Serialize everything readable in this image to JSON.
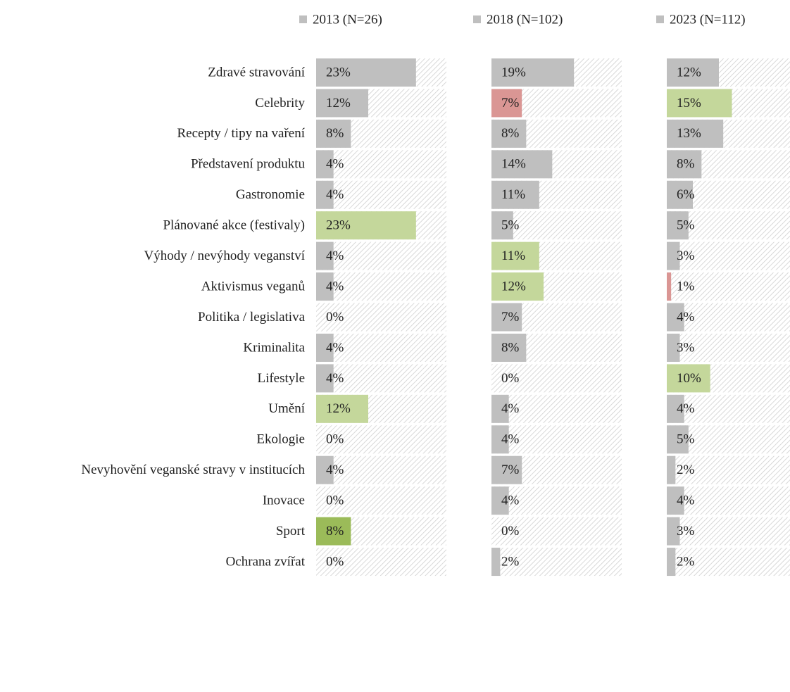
{
  "chart_data": {
    "type": "bar",
    "categories": [
      "Zdravé stravování",
      "Celebrity",
      "Recepty / tipy na vaření",
      "Představení produktu",
      "Gastronomie",
      "Plánované akce (festivaly)",
      "Výhody / nevýhody veganství",
      "Aktivismus veganů",
      "Politika / legislativa",
      "Kriminalita",
      "Lifestyle",
      "Umění",
      "Ekologie",
      "Nevyhovění veganské stravy v institucích",
      "Inovace",
      "Sport",
      "Ochrana zvířat"
    ],
    "xlim": [
      0,
      30
    ],
    "legend_color": "#bfbfbf",
    "series": [
      {
        "name": "2013 (N=26)",
        "values": [
          23,
          12,
          8,
          4,
          4,
          23,
          4,
          4,
          0,
          4,
          4,
          12,
          0,
          4,
          0,
          8,
          0
        ],
        "value_labels": [
          "23%",
          "12%",
          "8%",
          "4%",
          "4%",
          "23%",
          "4%",
          "4%",
          "0%",
          "4%",
          "4%",
          "12%",
          "0%",
          "4%",
          "0%",
          "8%",
          "0%"
        ],
        "colors": [
          "#bfbfbf",
          "#bfbfbf",
          "#bfbfbf",
          "#bfbfbf",
          "#bfbfbf",
          "#c4d79b",
          "#bfbfbf",
          "#bfbfbf",
          "#bfbfbf",
          "#bfbfbf",
          "#bfbfbf",
          "#c4d79b",
          "#bfbfbf",
          "#bfbfbf",
          "#bfbfbf",
          "#9bbb59",
          "#bfbfbf"
        ],
        "label_colors": [
          "#222",
          "#222",
          "#222",
          "#222",
          "#222",
          "#222",
          "#222",
          "#222",
          "#222",
          "#222",
          "#222",
          "#222",
          "#222",
          "#222",
          "#222",
          "#222",
          "#222"
        ]
      },
      {
        "name": "2018 (N=102)",
        "values": [
          19,
          7,
          8,
          14,
          11,
          5,
          11,
          12,
          7,
          8,
          0,
          4,
          4,
          7,
          4,
          0,
          2
        ],
        "value_labels": [
          "19%",
          "7%",
          "8%",
          "14%",
          "11%",
          "5%",
          "11%",
          "12%",
          "7%",
          "8%",
          "0%",
          "4%",
          "4%",
          "7%",
          "4%",
          "0%",
          "2%"
        ],
        "colors": [
          "#bfbfbf",
          "#da9694",
          "#bfbfbf",
          "#bfbfbf",
          "#bfbfbf",
          "#bfbfbf",
          "#c4d79b",
          "#c4d79b",
          "#bfbfbf",
          "#bfbfbf",
          "#bfbfbf",
          "#bfbfbf",
          "#bfbfbf",
          "#bfbfbf",
          "#bfbfbf",
          "#bfbfbf",
          "#bfbfbf"
        ],
        "label_colors": [
          "#222",
          "#222",
          "#222",
          "#222",
          "#222",
          "#222",
          "#222",
          "#222",
          "#222",
          "#222",
          "#ff0000",
          "#222",
          "#222",
          "#222",
          "#222",
          "#ff0000",
          "#222"
        ]
      },
      {
        "name": "2023 (N=112)",
        "values": [
          12,
          15,
          13,
          8,
          6,
          5,
          3,
          1,
          4,
          3,
          10,
          4,
          5,
          2,
          4,
          3,
          2
        ],
        "value_labels": [
          "12%",
          "15%",
          "13%",
          "8%",
          "6%",
          "5%",
          "3%",
          "1%",
          "4%",
          "3%",
          "10%",
          "4%",
          "5%",
          "2%",
          "4%",
          "3%",
          "2%"
        ],
        "colors": [
          "#bfbfbf",
          "#c4d79b",
          "#bfbfbf",
          "#bfbfbf",
          "#bfbfbf",
          "#bfbfbf",
          "#bfbfbf",
          "#da9694",
          "#bfbfbf",
          "#bfbfbf",
          "#c4d79b",
          "#bfbfbf",
          "#bfbfbf",
          "#bfbfbf",
          "#bfbfbf",
          "#bfbfbf",
          "#bfbfbf"
        ],
        "label_colors": [
          "#222",
          "#222",
          "#222",
          "#222",
          "#222",
          "#222",
          "#222",
          "#ff0000",
          "#222",
          "#222",
          "#222",
          "#222",
          "#222",
          "#222",
          "#222",
          "#222",
          "#222"
        ]
      }
    ]
  }
}
